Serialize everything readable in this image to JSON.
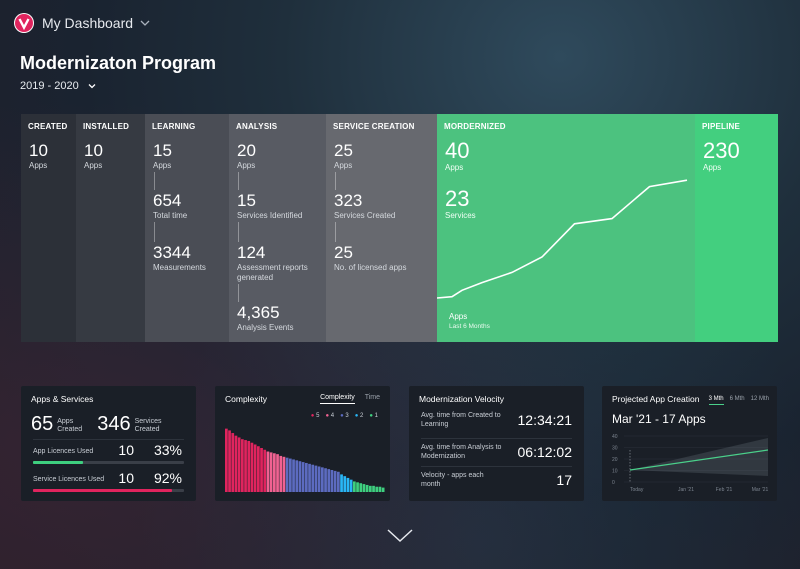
{
  "header": {
    "app_title": "My Dashboard"
  },
  "page": {
    "title": "Modernizaton Program",
    "period": "2019 - 2020"
  },
  "stages": {
    "created": {
      "head": "CREATED",
      "num": "10",
      "lbl": "Apps"
    },
    "installed": {
      "head": "INSTALLED",
      "num": "10",
      "lbl": "Apps"
    },
    "learning": {
      "head": "LEARNING",
      "m1": "15",
      "l1": "Apps",
      "m2": "654",
      "l2": "Total time",
      "m3": "3344",
      "l3": "Measurements"
    },
    "analysis": {
      "head": "ANALYSIS",
      "m1": "20",
      "l1": "Apps",
      "m2": "15",
      "l2": "Services Identified",
      "m3": "124",
      "l3": "Assessment reports generated",
      "m4": "4,365",
      "l4": "Analysis Events"
    },
    "service": {
      "head": "SERVICE CREATION",
      "m1": "25",
      "l1": "Apps",
      "m2": "323",
      "l2": "Services Created",
      "m3": "25",
      "l3": "No. of licensed apps"
    },
    "modernized": {
      "head": "MORDERNIZED",
      "m1": "40",
      "l1": "Apps",
      "m2": "23",
      "l2": "Services",
      "caption": "Apps",
      "caption_sub": "Last 6 Months"
    },
    "pipeline": {
      "head": "PIPELINE",
      "num": "230",
      "lbl": "Apps"
    }
  },
  "modernized_trend": [
    [
      0,
      0
    ],
    [
      0.06,
      0.01
    ],
    [
      0.1,
      0.06
    ],
    [
      0.18,
      0.12
    ],
    [
      0.3,
      0.2
    ],
    [
      0.42,
      0.32
    ],
    [
      0.55,
      0.58
    ],
    [
      0.7,
      0.62
    ],
    [
      0.85,
      0.87
    ],
    [
      1,
      0.92
    ]
  ],
  "apps_services": {
    "title": "Apps & Services",
    "apps_num": "65",
    "apps_lbl": "Apps Created",
    "services_num": "346",
    "services_lbl": "Services Created",
    "app_lic_label": "App Licences Used",
    "app_lic_count": "10",
    "app_lic_pct": "33%",
    "app_lic_fraction": 0.33,
    "app_lic_color": "#3ecf7f",
    "svc_lic_label": "Service Licences Used",
    "svc_lic_count": "10",
    "svc_lic_pct": "92%",
    "svc_lic_fraction": 0.92,
    "svc_lic_color": "#e0245e"
  },
  "complexity": {
    "title": "Complexity",
    "tab_active": "Complexity",
    "tab_inactive": "Time",
    "legend": [
      {
        "label": "5",
        "color": "#e0245e"
      },
      {
        "label": "4",
        "color": "#f06292"
      },
      {
        "label": "3",
        "color": "#5c6bc0"
      },
      {
        "label": "2",
        "color": "#29b6f6"
      },
      {
        "label": "1",
        "color": "#3ecf7f"
      }
    ]
  },
  "chart_data": {
    "type": "bar",
    "title": "Complexity",
    "series_colors": [
      "#e0245e",
      "#f06292",
      "#5c6bc0",
      "#29b6f6",
      "#3ecf7f"
    ],
    "values": [
      72,
      70,
      67,
      64,
      62,
      60,
      59,
      58,
      56,
      54,
      52,
      50,
      48,
      46,
      45,
      44,
      43,
      41,
      40,
      39,
      38,
      37,
      36,
      35,
      34,
      33,
      32,
      31,
      30,
      29,
      28,
      27,
      26,
      25,
      24,
      23,
      20,
      18,
      16,
      14,
      12,
      11,
      10,
      9,
      8,
      7,
      7,
      6,
      6,
      5
    ],
    "groups": [
      1,
      1,
      1,
      1,
      1,
      1,
      1,
      1,
      1,
      1,
      1,
      1,
      1,
      2,
      2,
      2,
      2,
      2,
      2,
      3,
      3,
      3,
      3,
      3,
      3,
      3,
      3,
      3,
      3,
      3,
      3,
      3,
      3,
      3,
      3,
      3,
      4,
      4,
      4,
      4,
      5,
      5,
      5,
      5,
      5,
      5,
      5,
      5,
      5,
      5
    ]
  },
  "velocity": {
    "title": "Modernization Velocity",
    "r1_label": "Avg. time from Created to Learning",
    "r1_value": "12:34:21",
    "r2_label": "Avg. time from Analysis to Modernization",
    "r2_value": "06:12:02",
    "r3_label": "Velocity - apps each month",
    "r3_value": "17"
  },
  "projected": {
    "title": "Projected App Creation",
    "tabs": [
      "3 Mth",
      "6 Mth",
      "12 Mth"
    ],
    "headline": "Mar '21 - 17 Apps",
    "y_ticks": [
      "40",
      "30",
      "20",
      "10",
      "0"
    ],
    "x_ticks": [
      "Today",
      "Jan '21",
      "Feb '21",
      "Mar '21"
    ],
    "line_color": "#4ad08a"
  }
}
